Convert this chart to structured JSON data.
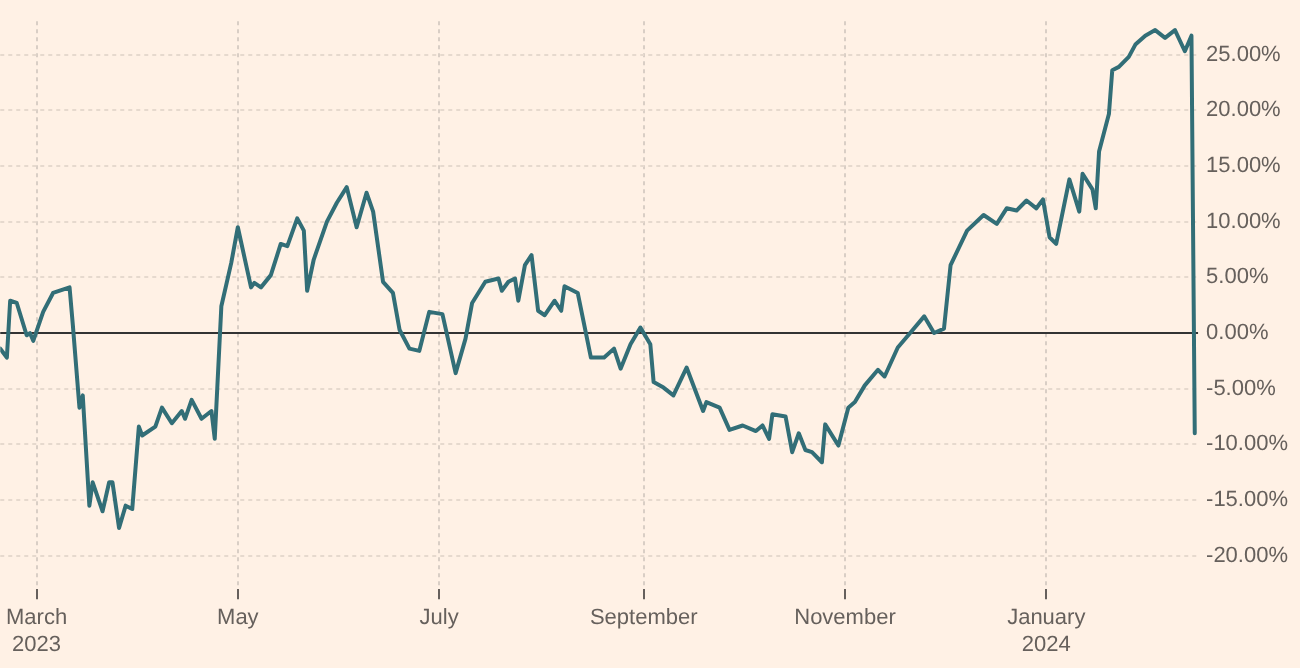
{
  "chart_data": {
    "type": "line",
    "x": [
      "2023-02-18",
      "2023-02-20",
      "2023-02-21",
      "2023-02-23",
      "2023-02-26",
      "2023-02-27",
      "2023-02-28",
      "2023-03-03",
      "2023-03-06",
      "2023-03-11",
      "2023-03-12",
      "2023-03-14",
      "2023-03-15",
      "2023-03-17",
      "2023-03-18",
      "2023-03-21",
      "2023-03-23",
      "2023-03-24",
      "2023-03-26",
      "2023-03-28",
      "2023-03-30",
      "2023-04-01",
      "2023-04-02",
      "2023-04-06",
      "2023-04-08",
      "2023-04-11",
      "2023-04-14",
      "2023-04-15",
      "2023-04-17",
      "2023-04-20",
      "2023-04-23",
      "2023-04-24",
      "2023-04-26",
      "2023-04-29",
      "2023-05-01",
      "2023-05-05",
      "2023-05-06",
      "2023-05-08",
      "2023-05-11",
      "2023-05-14",
      "2023-05-16",
      "2023-05-19",
      "2023-05-21",
      "2023-05-22",
      "2023-05-24",
      "2023-05-28",
      "2023-05-31",
      "2023-06-03",
      "2023-06-06",
      "2023-06-09",
      "2023-06-11",
      "2023-06-14",
      "2023-06-17",
      "2023-06-19",
      "2023-06-22",
      "2023-06-25",
      "2023-06-28",
      "2023-07-02",
      "2023-07-06",
      "2023-07-09",
      "2023-07-11",
      "2023-07-15",
      "2023-07-19",
      "2023-07-20",
      "2023-07-22",
      "2023-07-24",
      "2023-07-25",
      "2023-07-27",
      "2023-07-29",
      "2023-07-31",
      "2023-08-02",
      "2023-08-05",
      "2023-08-07",
      "2023-08-08",
      "2023-08-12",
      "2023-08-16",
      "2023-08-20",
      "2023-08-23",
      "2023-08-25",
      "2023-08-28",
      "2023-08-31",
      "2023-09-03",
      "2023-09-04",
      "2023-09-07",
      "2023-09-10",
      "2023-09-14",
      "2023-09-19",
      "2023-09-20",
      "2023-09-24",
      "2023-09-27",
      "2023-10-01",
      "2023-10-05",
      "2023-10-07",
      "2023-10-09",
      "2023-10-10",
      "2023-10-14",
      "2023-10-16",
      "2023-10-18",
      "2023-10-20",
      "2023-10-22",
      "2023-10-25",
      "2023-10-26",
      "2023-10-30",
      "2023-11-02",
      "2023-11-04",
      "2023-11-07",
      "2023-11-11",
      "2023-11-13",
      "2023-11-17",
      "2023-11-21",
      "2023-11-25",
      "2023-11-28",
      "2023-12-01",
      "2023-12-03",
      "2023-12-08",
      "2023-12-13",
      "2023-12-17",
      "2023-12-20",
      "2023-12-23",
      "2023-12-26",
      "2023-12-29",
      "2023-12-31",
      "2024-01-02",
      "2024-01-04",
      "2024-01-08",
      "2024-01-11",
      "2024-01-12",
      "2024-01-15",
      "2024-01-16",
      "2024-01-17",
      "2024-01-20",
      "2024-01-21",
      "2024-01-23",
      "2024-01-26",
      "2024-01-28",
      "2024-01-31",
      "2024-02-03",
      "2024-02-06",
      "2024-02-09",
      "2024-02-12",
      "2024-02-14",
      "2024-02-15"
    ],
    "series": [
      {
        "color": "#326e77",
        "values": [
          -1.4,
          -2.2,
          2.9,
          2.7,
          -0.2,
          0.0,
          -0.7,
          1.9,
          3.6,
          4.1,
          0.7,
          -6.7,
          -5.6,
          -15.5,
          -13.4,
          -16.0,
          -13.4,
          -13.4,
          -17.5,
          -15.5,
          -15.8,
          -8.4,
          -9.2,
          -8.4,
          -6.7,
          -8.1,
          -7.0,
          -7.7,
          -6.0,
          -7.7,
          -7.0,
          -9.5,
          2.4,
          6.3,
          9.5,
          4.1,
          4.5,
          4.1,
          5.2,
          8.0,
          7.8,
          10.3,
          9.2,
          3.8,
          6.6,
          10.0,
          11.7,
          13.1,
          9.5,
          12.6,
          10.9,
          4.6,
          3.6,
          0.3,
          -1.4,
          -1.6,
          1.9,
          1.7,
          -3.6,
          -0.5,
          2.7,
          4.6,
          4.9,
          3.8,
          4.6,
          4.9,
          2.9,
          6.1,
          7.0,
          2.0,
          1.6,
          2.9,
          2.0,
          4.2,
          3.6,
          -2.2,
          -2.2,
          -1.4,
          -3.2,
          -1.0,
          0.5,
          -1.0,
          -4.4,
          -4.9,
          -5.6,
          -3.1,
          -7.0,
          -6.2,
          -6.7,
          -8.7,
          -8.3,
          -8.8,
          -8.3,
          -9.5,
          -7.3,
          -7.5,
          -10.7,
          -9.0,
          -10.5,
          -10.7,
          -11.6,
          -8.2,
          -10.1,
          -6.7,
          -6.2,
          -4.7,
          -3.3,
          -3.9,
          -1.3,
          0.1,
          1.5,
          0.0,
          0.4,
          6.1,
          9.2,
          10.6,
          9.8,
          11.2,
          11.0,
          11.9,
          11.2,
          12.0,
          8.6,
          8.0,
          13.8,
          10.9,
          14.3,
          12.9,
          11.2,
          16.3,
          19.7,
          23.6,
          23.9,
          24.8,
          25.9,
          26.7,
          27.2,
          26.5,
          27.2,
          25.3,
          26.7,
          -9.0
        ]
      }
    ],
    "xlim": [
      "2023-02-18",
      "2024-02-16"
    ],
    "xticks": [
      {
        "value": "2023-03-01",
        "label": "March 2023"
      },
      {
        "value": "2023-05-01",
        "label": "May"
      },
      {
        "value": "2023-07-01",
        "label": "July"
      },
      {
        "value": "2023-09-01",
        "label": "September"
      },
      {
        "value": "2023-11-01",
        "label": "November"
      },
      {
        "value": "2024-01-01",
        "label": "January 2024"
      }
    ],
    "ylim": [
      -23,
      28
    ],
    "yticks": [
      {
        "value": -20,
        "label": "-20.00%"
      },
      {
        "value": -15,
        "label": "-15.00%"
      },
      {
        "value": -10,
        "label": "-10.00%"
      },
      {
        "value": -5,
        "label": "-5.00%"
      },
      {
        "value": 0,
        "label": "0.00%"
      },
      {
        "value": 5,
        "label": "5.00%"
      },
      {
        "value": 10,
        "label": "10.00%"
      },
      {
        "value": 15,
        "label": "15.00%"
      },
      {
        "value": 20,
        "label": "20.00%"
      },
      {
        "value": 25,
        "label": "25.00%"
      }
    ],
    "ref_lines": [
      {
        "axis": "y",
        "value": 0,
        "color": "#333333"
      }
    ],
    "grid": true,
    "legend": false,
    "marker": "none",
    "line_style": "solid"
  }
}
